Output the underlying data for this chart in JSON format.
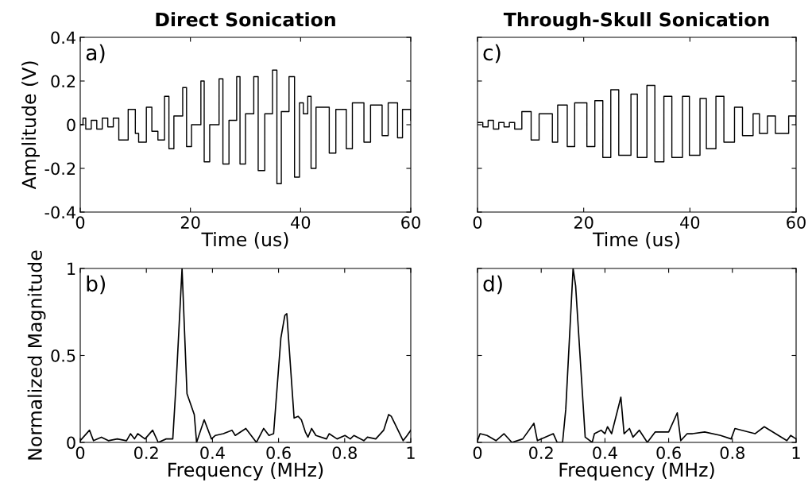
{
  "chart_data": [
    {
      "type": "step",
      "title": "Direct Sonication",
      "xlabel": "Time (us)",
      "ylabel": "Amplitude (V)",
      "annotations": [
        "a)"
      ],
      "xlim": [
        0,
        60
      ],
      "xticks": [
        0,
        20,
        40,
        60
      ],
      "ylim": [
        -0.4,
        0.4
      ],
      "yticks": [
        -0.4,
        -0.2,
        0,
        0.2,
        0.4
      ],
      "grid": false,
      "legend": false,
      "series": [
        {
          "color": "#000000",
          "x": [
            0,
            0.5,
            1,
            2,
            3,
            4,
            5,
            6,
            7,
            8.7,
            10,
            10.6,
            12,
            13,
            14.1,
            15.3,
            16.1,
            17,
            18.6,
            19.3,
            20.2,
            21.9,
            22.5,
            23.5,
            25.2,
            25.9,
            27,
            28.4,
            29,
            30,
            31.5,
            32.3,
            33.5,
            34.9,
            35.7,
            36.5,
            37.9,
            38.9,
            39.8,
            40.5,
            41.3,
            41.9,
            42.8,
            45.2,
            46.4,
            48.3,
            49.4,
            51.5,
            52.7,
            54.8,
            55.9,
            57.6,
            58.5,
            60
          ],
          "values": [
            0,
            0.03,
            -0.02,
            0.02,
            -0.02,
            0.03,
            -0.01,
            0.03,
            -0.07,
            0.07,
            -0.04,
            -0.08,
            0.08,
            -0.03,
            -0.07,
            0.13,
            -0.11,
            0.04,
            0.17,
            -0.1,
            0,
            0.2,
            -0.17,
            0,
            0.21,
            -0.18,
            0.02,
            0.22,
            -0.18,
            0.05,
            0.22,
            -0.21,
            0.05,
            0.25,
            -0.27,
            0.06,
            0.22,
            -0.24,
            0.1,
            0.05,
            0.13,
            -0.2,
            0.08,
            -0.13,
            0.07,
            -0.11,
            0.1,
            -0.08,
            0.09,
            -0.05,
            0.1,
            -0.06,
            0.07,
            0.02
          ]
        }
      ]
    },
    {
      "type": "step",
      "title": "Through-Skull Sonication",
      "xlabel": "Time (us)",
      "annotations": [
        "c)"
      ],
      "xlim": [
        0,
        60
      ],
      "xticks": [
        0,
        20,
        40,
        60
      ],
      "ylim": [
        -0.4,
        0.4
      ],
      "yticks": [
        -0.4,
        -0.2,
        0,
        0.2,
        0.4
      ],
      "tick_labels": "x",
      "grid": false,
      "legend": false,
      "series": [
        {
          "color": "#000000",
          "x": [
            0,
            1,
            2,
            3,
            4,
            5,
            6,
            7,
            8.35,
            10.1,
            11.6,
            14.1,
            15.1,
            16.9,
            18.3,
            20.6,
            22.1,
            23.6,
            25.1,
            26.6,
            28.9,
            30.1,
            31.9,
            33.4,
            35.1,
            36.6,
            38.6,
            39.9,
            41.9,
            43.1,
            44.9,
            46.4,
            48.4,
            49.9,
            51.9,
            53.1,
            54.6,
            56.1,
            58.6,
            60
          ],
          "values": [
            0.01,
            -0.01,
            0.02,
            -0.02,
            0.01,
            -0.01,
            0.01,
            -0.02,
            0.06,
            -0.07,
            0.05,
            -0.08,
            0.09,
            -0.1,
            0.1,
            -0.1,
            0.11,
            -0.15,
            0.16,
            -0.14,
            0.14,
            -0.15,
            0.18,
            -0.17,
            0.13,
            -0.15,
            0.13,
            -0.14,
            0.12,
            -0.11,
            0.13,
            -0.08,
            0.08,
            -0.05,
            0.05,
            -0.04,
            0.04,
            -0.04,
            0.04,
            0
          ]
        }
      ]
    },
    {
      "type": "line",
      "xlabel": "Frequency (MHz)",
      "ylabel": "Normalized Magnitude",
      "annotations": [
        "b)"
      ],
      "xlim": [
        0,
        1
      ],
      "xticks": [
        0,
        0.2,
        0.4,
        0.6,
        0.8,
        1
      ],
      "ylim": [
        0,
        1
      ],
      "yticks": [
        0,
        0.5,
        1
      ],
      "grid": false,
      "legend": false,
      "series": [
        {
          "color": "#000000",
          "x": [
            0,
            0.028,
            0.04,
            0.064,
            0.085,
            0.112,
            0.14,
            0.152,
            0.164,
            0.174,
            0.196,
            0.219,
            0.236,
            0.26,
            0.28,
            0.291,
            0.308,
            0.323,
            0.345,
            0.352,
            0.375,
            0.397,
            0.409,
            0.433,
            0.459,
            0.469,
            0.501,
            0.533,
            0.555,
            0.571,
            0.585,
            0.607,
            0.619,
            0.625,
            0.647,
            0.659,
            0.669,
            0.681,
            0.689,
            0.7,
            0.713,
            0.745,
            0.753,
            0.777,
            0.801,
            0.817,
            0.828,
            0.858,
            0.869,
            0.894,
            0.918,
            0.933,
            0.941,
            0.977,
            0.989,
            1.0
          ],
          "values": [
            0.01,
            0.07,
            0.01,
            0.03,
            0.01,
            0.02,
            0.01,
            0.05,
            0.02,
            0.05,
            0.02,
            0.07,
            0,
            0.02,
            0.02,
            0.37,
            1.0,
            0.28,
            0.16,
            0,
            0.13,
            0.02,
            0.04,
            0.05,
            0.07,
            0.04,
            0.08,
            0,
            0.08,
            0.04,
            0.05,
            0.6,
            0.73,
            0.74,
            0.14,
            0.15,
            0.13,
            0.06,
            0.03,
            0.08,
            0.04,
            0.02,
            0.05,
            0.02,
            0.04,
            0.02,
            0.04,
            0.01,
            0.03,
            0.02,
            0.07,
            0.16,
            0.15,
            0.01,
            0.04,
            0.07
          ]
        }
      ]
    },
    {
      "type": "line",
      "xlabel": "Frequency (MHz)",
      "annotations": [
        "d)"
      ],
      "xlim": [
        0,
        1
      ],
      "xticks": [
        0,
        0.2,
        0.4,
        0.6,
        0.8,
        1
      ],
      "ylim": [
        0,
        1
      ],
      "yticks": [
        0,
        0.5,
        1
      ],
      "tick_labels": "x",
      "grid": false,
      "legend": false,
      "series": [
        {
          "color": "#000000",
          "x": [
            0,
            0.008,
            0.03,
            0.058,
            0.083,
            0.108,
            0.142,
            0.177,
            0.188,
            0.238,
            0.25,
            0.267,
            0.277,
            0.3,
            0.308,
            0.338,
            0.36,
            0.367,
            0.388,
            0.4,
            0.408,
            0.421,
            0.45,
            0.46,
            0.477,
            0.488,
            0.508,
            0.533,
            0.558,
            0.6,
            0.627,
            0.638,
            0.658,
            0.675,
            0.713,
            0.763,
            0.796,
            0.808,
            0.871,
            0.9,
            0.971,
            0.983,
            1.0
          ],
          "values": [
            0.01,
            0.05,
            0.04,
            0.01,
            0.05,
            0,
            0.02,
            0.11,
            0.01,
            0.05,
            0,
            0,
            0.19,
            1.0,
            0.9,
            0.03,
            0,
            0.05,
            0.07,
            0.05,
            0.09,
            0.05,
            0.26,
            0.05,
            0.08,
            0.03,
            0.07,
            0,
            0.06,
            0.06,
            0.17,
            0.01,
            0.05,
            0.05,
            0.06,
            0.04,
            0.02,
            0.08,
            0.05,
            0.09,
            0.01,
            0.04,
            0.02
          ]
        }
      ]
    }
  ]
}
